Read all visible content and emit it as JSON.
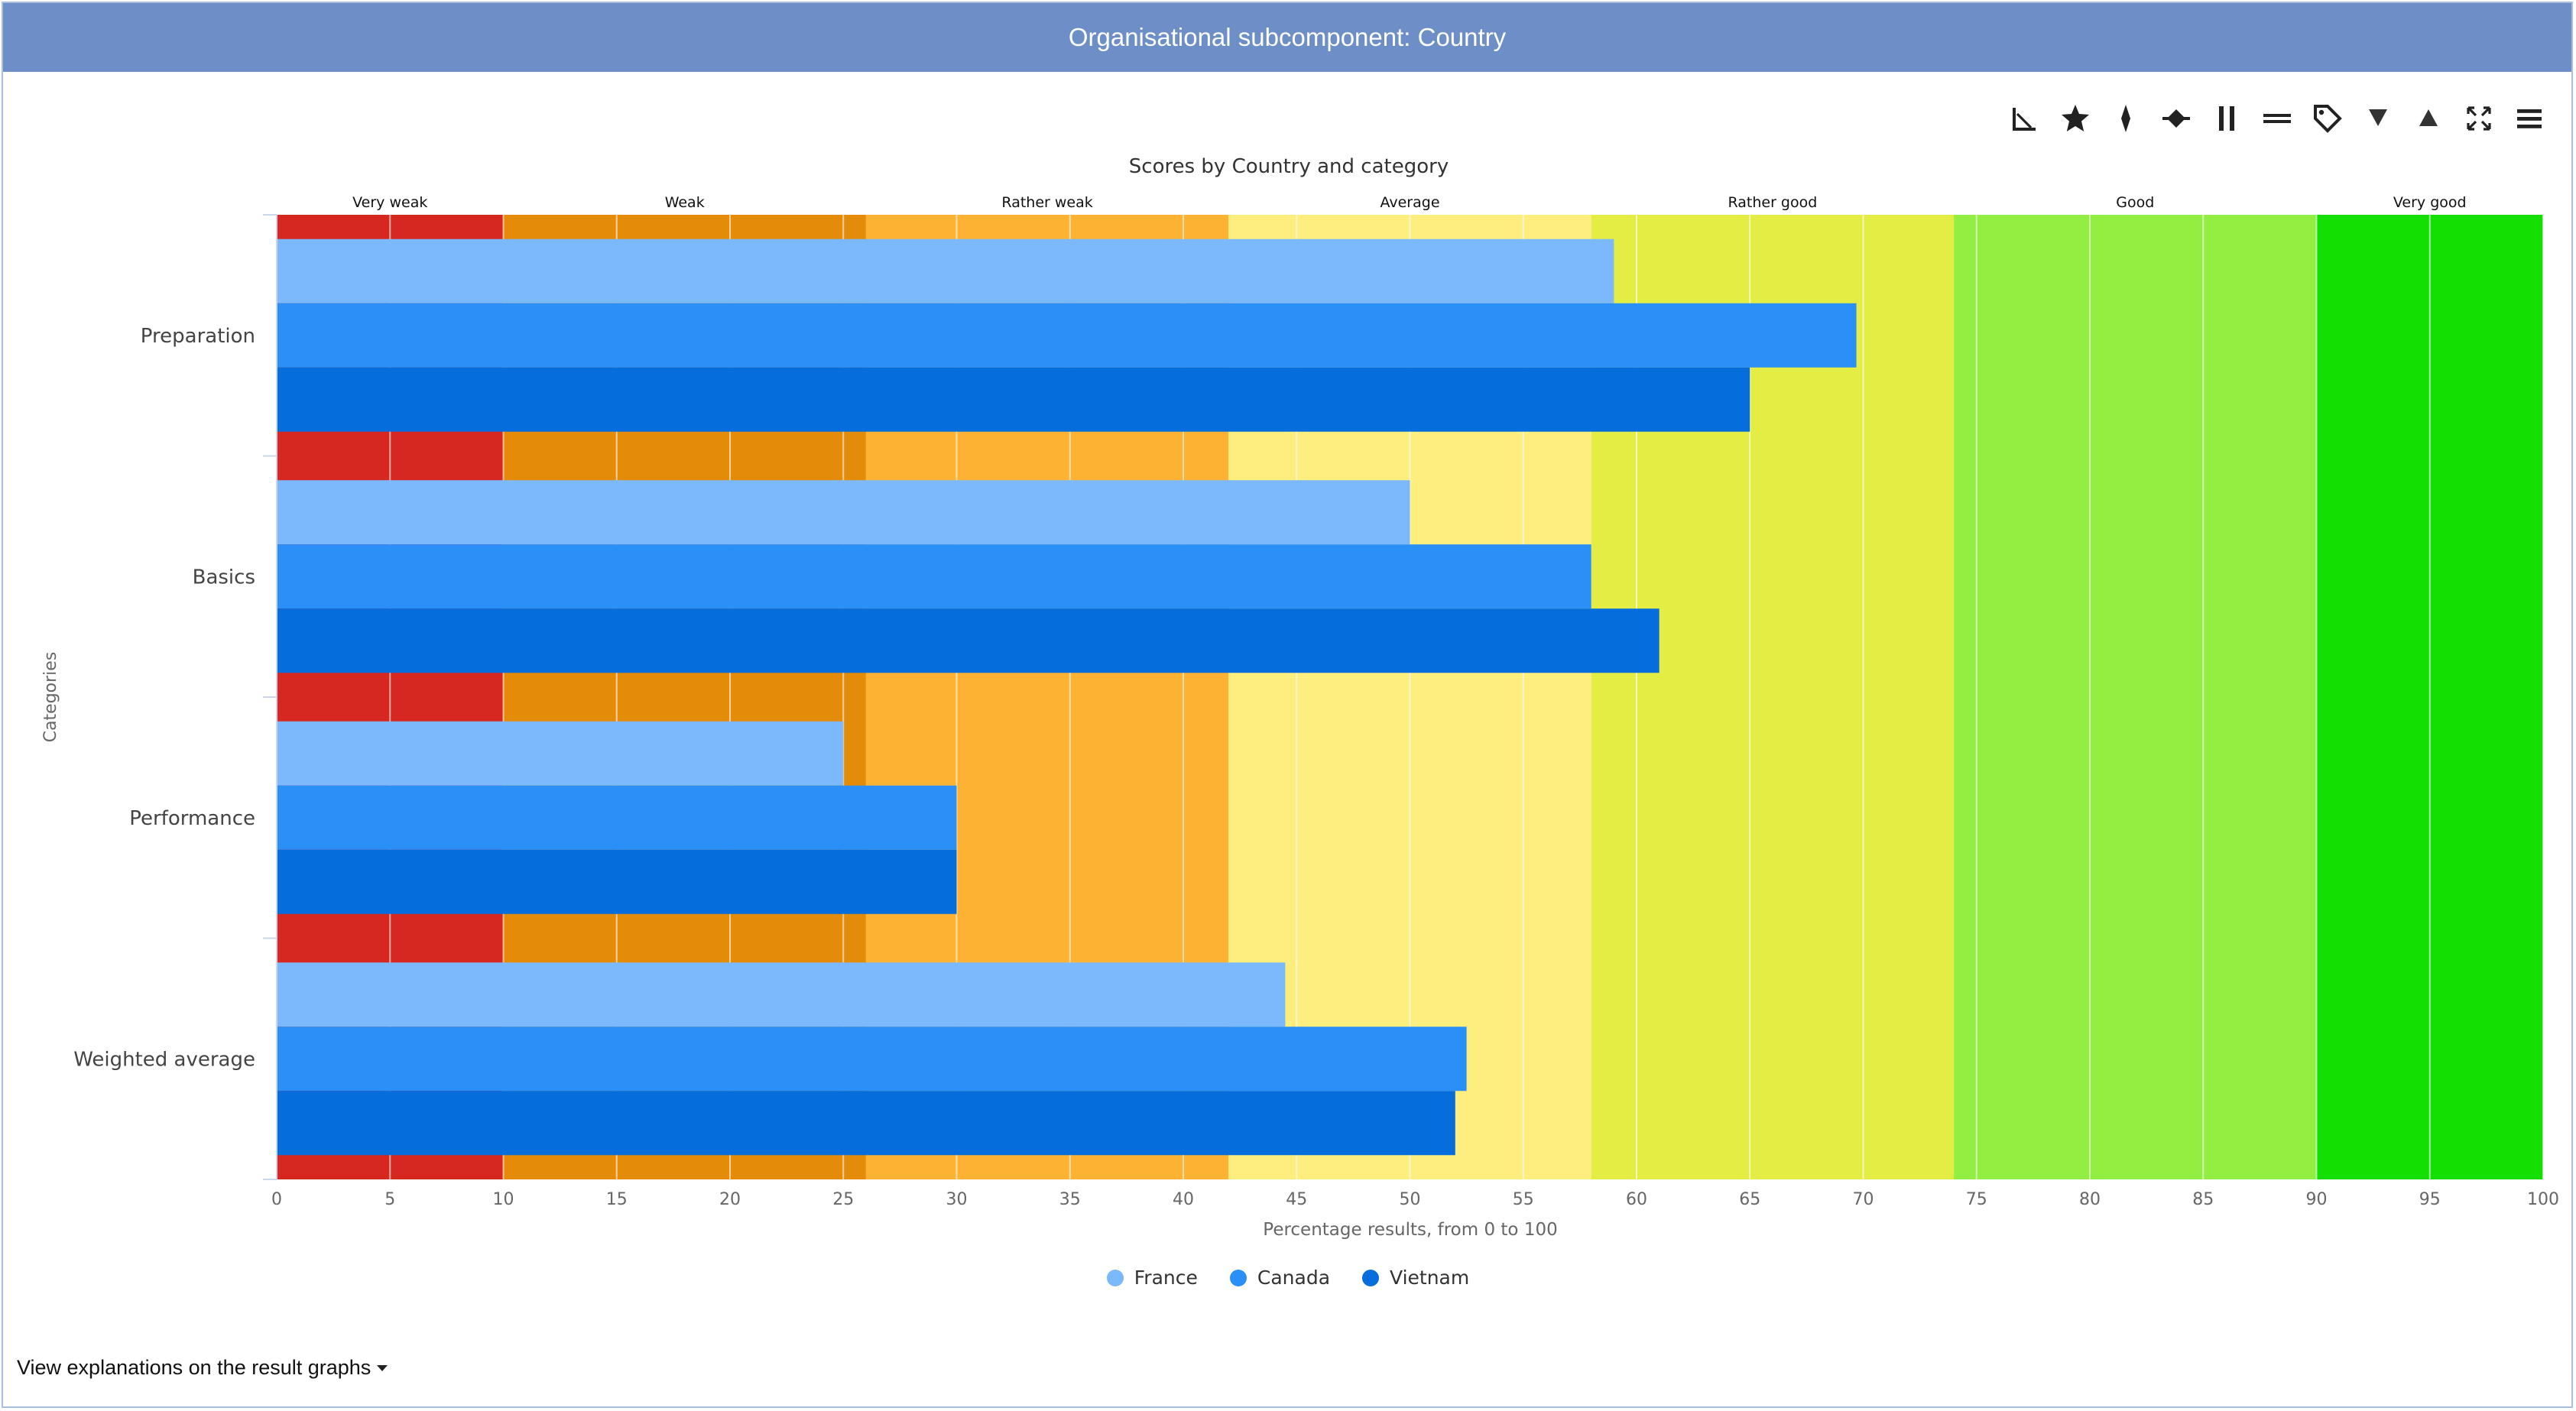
{
  "panel": {
    "title": "Organisational subcomponent: Country",
    "explanations_link": "View explanations on the result graphs"
  },
  "toolbar": {
    "buttons": [
      {
        "name": "axes-icon"
      },
      {
        "name": "star-icon"
      },
      {
        "name": "spark-icon"
      },
      {
        "name": "diamond-line-icon"
      },
      {
        "name": "vertical-bars-icon"
      },
      {
        "name": "horizontal-bars-icon"
      },
      {
        "name": "tag-icon"
      },
      {
        "name": "triangle-down-icon"
      },
      {
        "name": "triangle-up-icon"
      },
      {
        "name": "expand-icon"
      },
      {
        "name": "menu-icon"
      }
    ]
  },
  "chart_data": {
    "type": "bar",
    "orientation": "horizontal",
    "title": "Scores by Country and category",
    "xlabel": "Percentage results, from 0 to 100",
    "ylabel": "Categories",
    "xlim": [
      0,
      100
    ],
    "x_ticks": [
      "0",
      "5",
      "10",
      "15",
      "20",
      "25",
      "30",
      "35",
      "40",
      "45",
      "50",
      "55",
      "60",
      "65",
      "70",
      "75",
      "80",
      "85",
      "90",
      "95",
      "100"
    ],
    "grid": true,
    "legend_position": "bottom",
    "categories": [
      "Preparation",
      "Basics",
      "Performance",
      "Weighted average"
    ],
    "series": [
      {
        "name": "France",
        "color": "#7cb9fc",
        "values": [
          59,
          50,
          25,
          44.5
        ]
      },
      {
        "name": "Canada",
        "color": "#2b8ff8",
        "values": [
          69.7,
          58,
          30,
          52.5
        ]
      },
      {
        "name": "Vietnam",
        "color": "#056ddc",
        "values": [
          65,
          61,
          30,
          52
        ]
      }
    ],
    "bands": [
      {
        "label": "Very weak",
        "from": 0,
        "to": 10,
        "color": "#d62720"
      },
      {
        "label": "Weak",
        "from": 10,
        "to": 26,
        "color": "#e48b0a"
      },
      {
        "label": "Rather weak",
        "from": 26,
        "to": 42,
        "color": "#fdb233"
      },
      {
        "label": "Average",
        "from": 42,
        "to": 58,
        "color": "#fdee7e"
      },
      {
        "label": "Rather good",
        "from": 58,
        "to": 74,
        "color": "#e4ed44"
      },
      {
        "label": "Good",
        "from": 74,
        "to": 90,
        "color": "#92ef42"
      },
      {
        "label": "Very good",
        "from": 90,
        "to": 100,
        "color": "#14df03"
      }
    ]
  }
}
